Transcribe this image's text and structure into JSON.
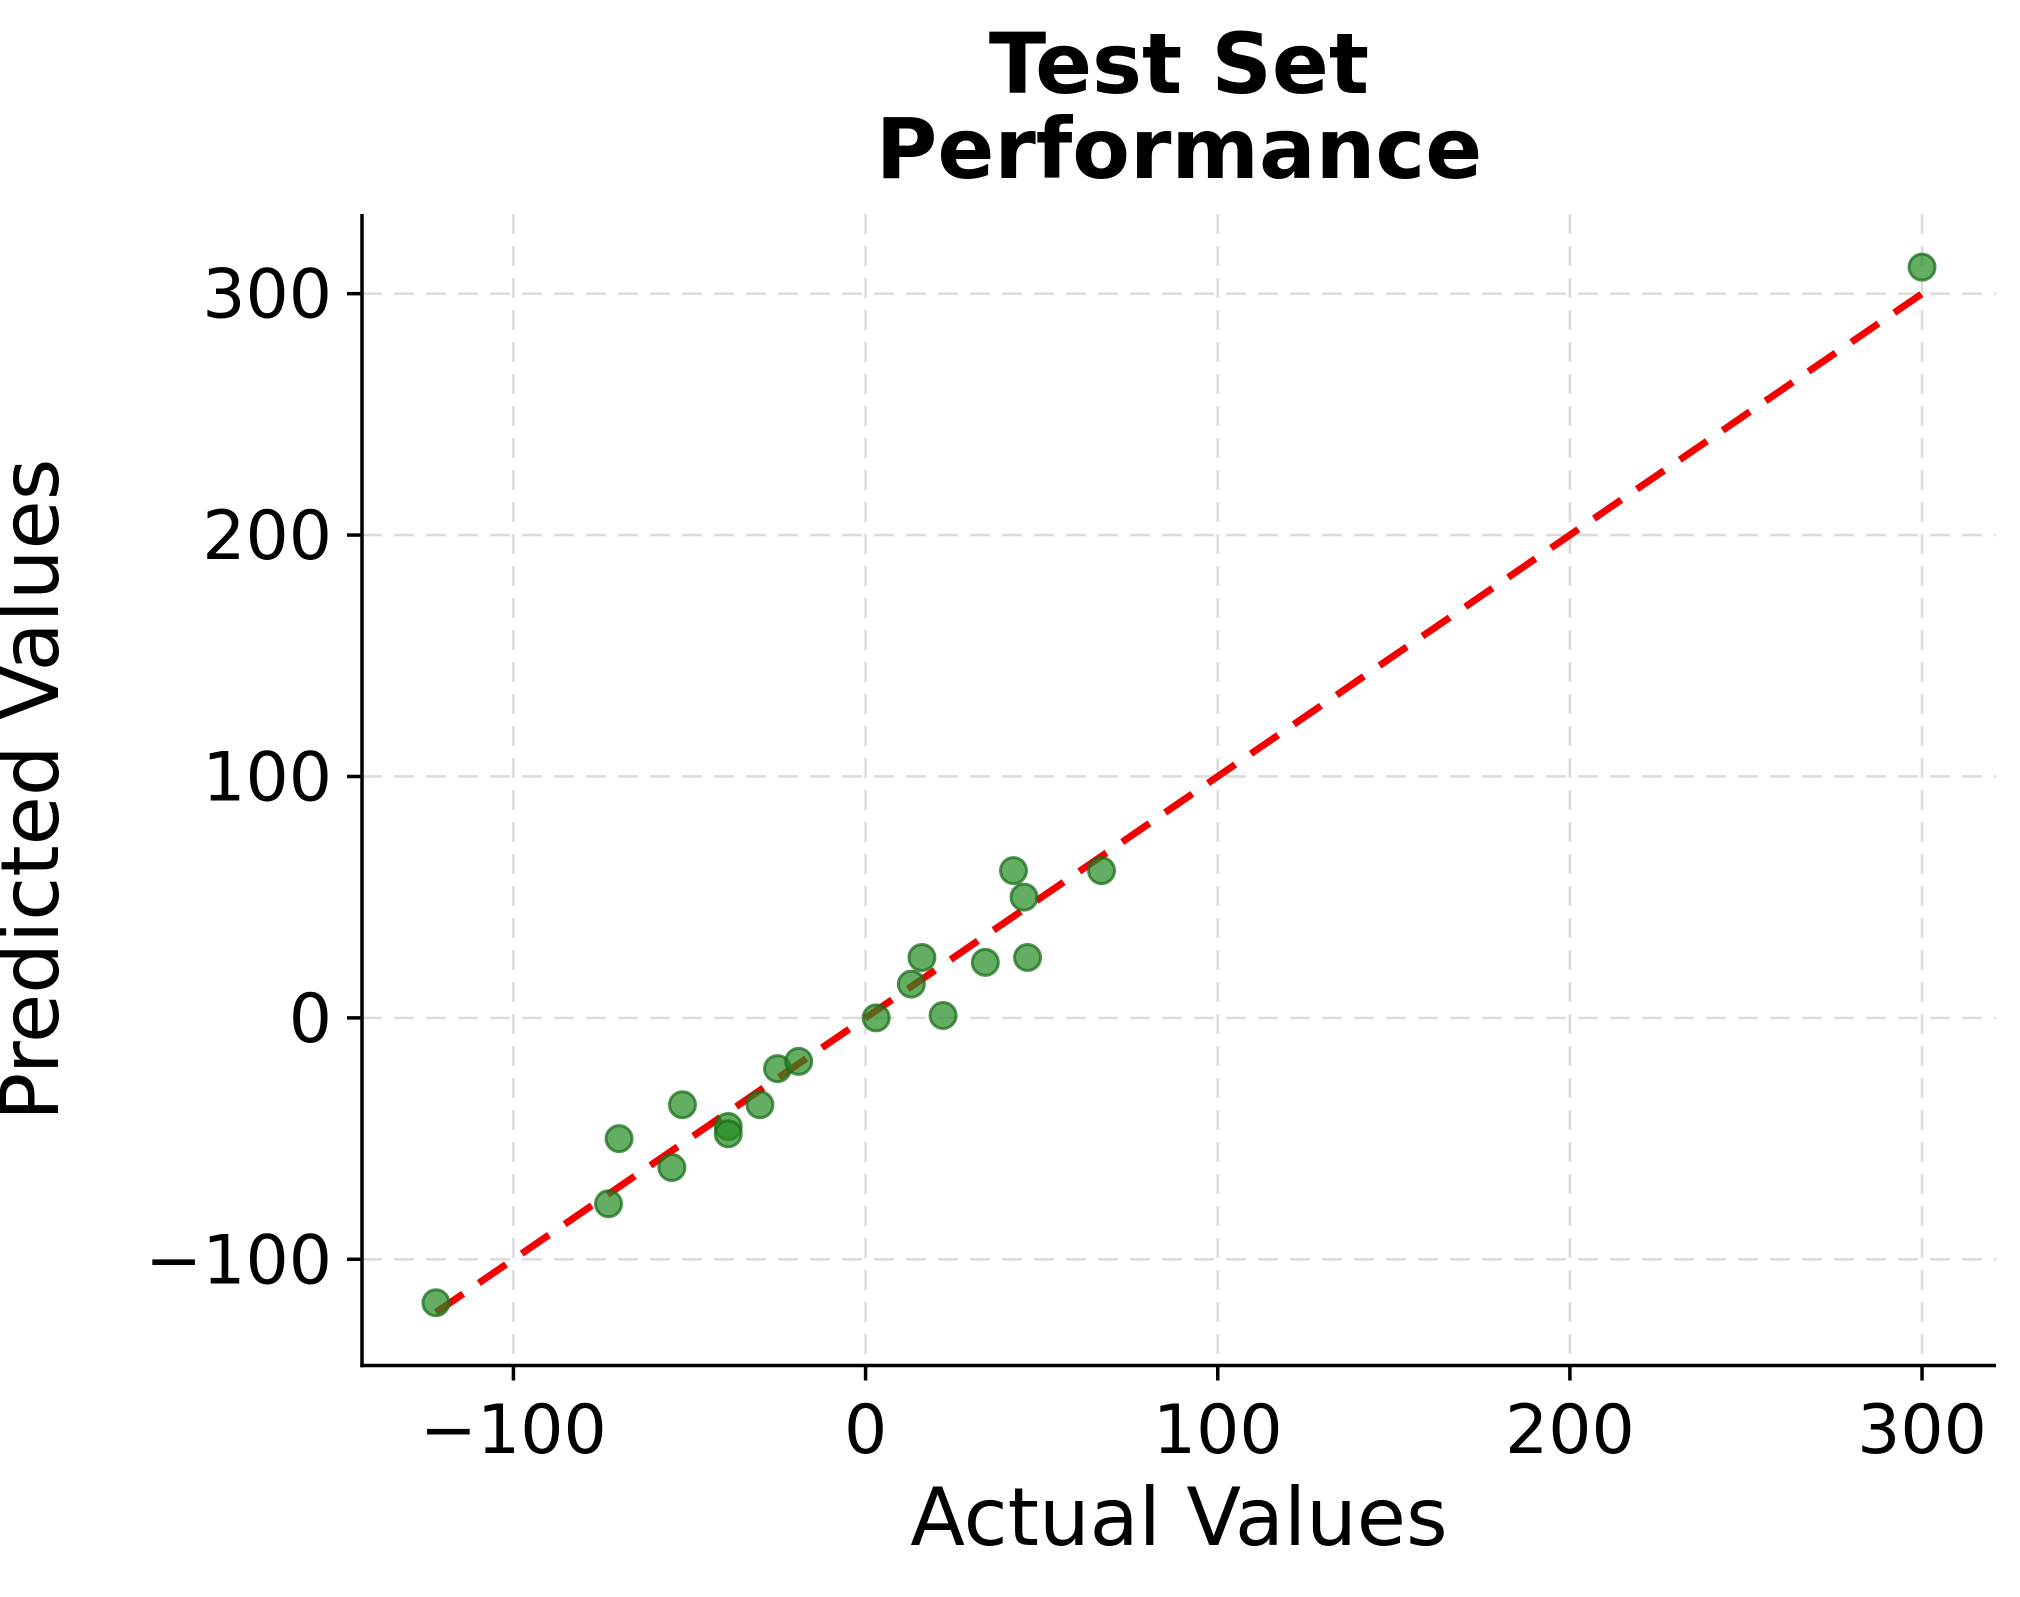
{
  "figure": {
    "title_line1": "Test Set",
    "title_line2": "Performance",
    "xlabel": "Actual Values",
    "ylabel": "Predicted Values"
  },
  "chart_data": {
    "type": "scatter",
    "title": "Test Set Performance",
    "xlabel": "Actual Values",
    "ylabel": "Predicted Values",
    "xlim": [
      -143,
      321
    ],
    "ylim": [
      -144,
      333
    ],
    "x_ticks": [
      -100,
      0,
      100,
      200,
      300
    ],
    "y_ticks": [
      -100,
      0,
      100,
      200,
      300
    ],
    "grid": true,
    "grid_style": "dashed",
    "legend_position": "none",
    "points": [
      [
        -122,
        -118
      ],
      [
        -73,
        -77
      ],
      [
        -70,
        -50
      ],
      [
        -55,
        -62
      ],
      [
        -52,
        -36
      ],
      [
        -39,
        -45
      ],
      [
        -39,
        -48
      ],
      [
        -30,
        -36
      ],
      [
        -25,
        -21
      ],
      [
        -19,
        -18
      ],
      [
        3,
        0
      ],
      [
        13,
        14
      ],
      [
        16,
        25
      ],
      [
        22,
        1
      ],
      [
        34,
        23
      ],
      [
        42,
        61
      ],
      [
        45,
        50
      ],
      [
        46,
        25
      ],
      [
        67,
        61
      ],
      [
        300,
        311
      ]
    ],
    "identity_line": {
      "x": [
        -122,
        300
      ],
      "y": [
        -122,
        300
      ],
      "style": "dashed"
    },
    "colors": {
      "point_fill": "#228B22",
      "point_edge": "#1b6e1b",
      "line": "#f40000",
      "grid": "#dcdcdc",
      "spine": "#000000"
    }
  }
}
